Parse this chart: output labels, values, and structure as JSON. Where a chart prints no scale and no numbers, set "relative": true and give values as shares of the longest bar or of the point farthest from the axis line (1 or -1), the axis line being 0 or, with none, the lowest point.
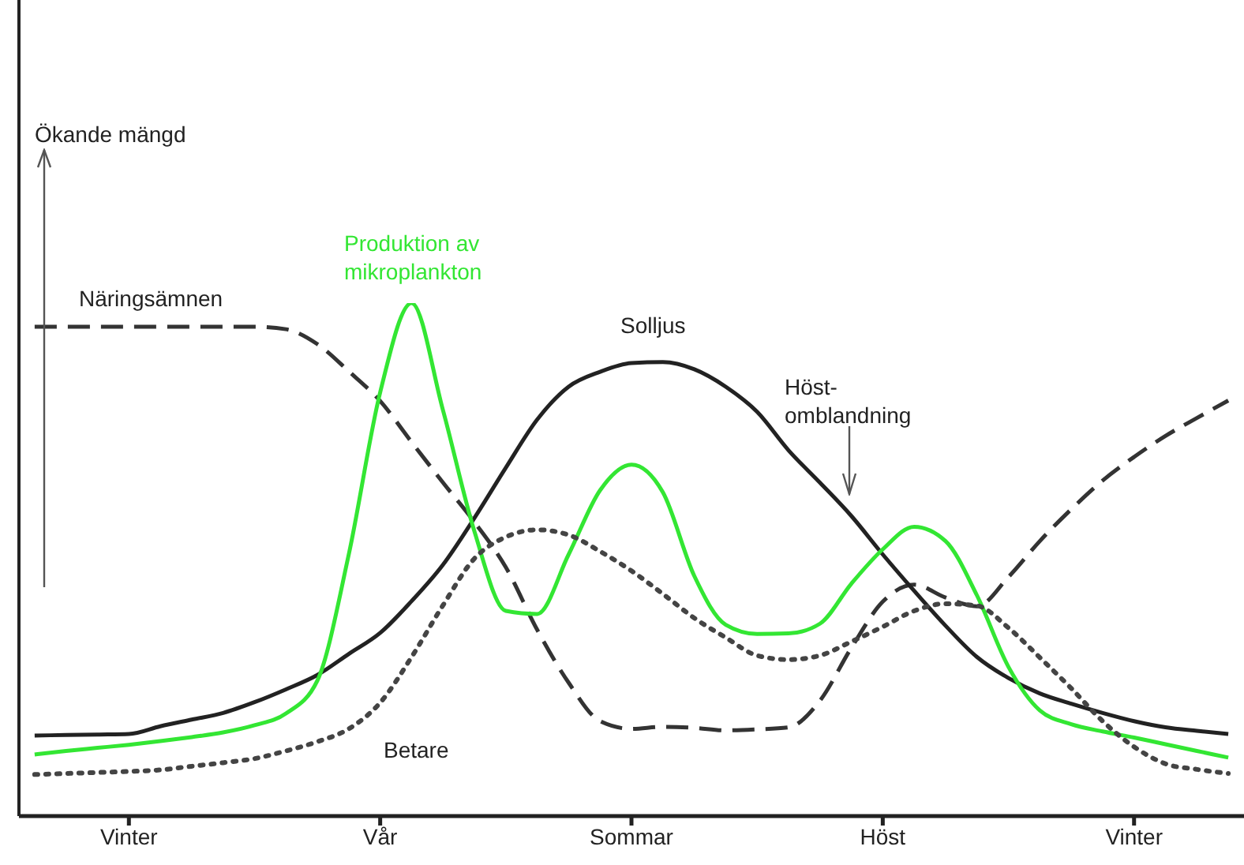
{
  "chart_data": {
    "type": "line",
    "relative": true,
    "categories": [
      null,
      null,
      null,
      "Vinter",
      null,
      null,
      null,
      null,
      null,
      null,
      null,
      "Vår",
      null,
      null,
      null,
      null,
      null,
      null,
      null,
      "Sommar",
      null,
      null,
      null,
      null,
      null,
      null,
      null,
      "Höst",
      null,
      null,
      null,
      null,
      null,
      null,
      null,
      "Vinter",
      null,
      null,
      null
    ],
    "annotations": [
      "Ökande mängd",
      "Höst-\nomblandning"
    ],
    "marker": "none",
    "grid": false,
    "legend": false,
    "series": [
      {
        "name": "Näringsämnen",
        "color": "#333333",
        "line_style": "dashed",
        "values": [
          0.954,
          0.954,
          0.954,
          0.954,
          0.954,
          0.954,
          0.954,
          0.954,
          0.949,
          0.92,
          0.867,
          0.809,
          0.729,
          0.65,
          0.573,
          0.485,
          0.363,
          0.26,
          0.185,
          0.17,
          0.174,
          0.172,
          0.167,
          0.169,
          0.173,
          0.225,
          0.328,
          0.418,
          0.451,
          0.426,
          0.409,
          0.466,
          0.536,
          0.598,
          0.654,
          0.7,
          0.741,
          0.776,
          0.81
        ]
      },
      {
        "name": "Solljus",
        "color": "#222222",
        "line_style": "solid",
        "values": [
          0.157,
          0.158,
          0.159,
          0.16,
          0.175,
          0.188,
          0.201,
          0.222,
          0.247,
          0.275,
          0.316,
          0.357,
          0.419,
          0.49,
          0.581,
          0.679,
          0.773,
          0.837,
          0.866,
          0.883,
          0.885,
          0.871,
          0.837,
          0.788,
          0.713,
          0.65,
          0.585,
          0.51,
          0.439,
          0.371,
          0.31,
          0.269,
          0.239,
          0.219,
          0.201,
          0.185,
          0.173,
          0.166,
          0.16
        ]
      },
      {
        "name": "Produktion av mikroplankton",
        "color": "#33e633",
        "line_style": "solid",
        "values": [
          0.12,
          0.127,
          0.133,
          0.139,
          0.146,
          0.154,
          0.163,
          0.177,
          0.2,
          0.264,
          0.51,
          0.826,
          1,
          0.791,
          0.555,
          0.4,
          0.394,
          0.51,
          0.635,
          0.685,
          0.631,
          0.468,
          0.373,
          0.355,
          0.356,
          0.375,
          0.453,
          0.52,
          0.564,
          0.536,
          0.43,
          0.291,
          0.206,
          0.179,
          0.165,
          0.153,
          0.14,
          0.127,
          0.114
        ]
      },
      {
        "name": "Betare",
        "color": "#444444",
        "line_style": "dotted",
        "values": [
          0.081,
          0.083,
          0.085,
          0.087,
          0.09,
          0.097,
          0.104,
          0.112,
          0.127,
          0.145,
          0.17,
          0.221,
          0.31,
          0.411,
          0.502,
          0.544,
          0.558,
          0.548,
          0.516,
          0.478,
          0.433,
          0.386,
          0.348,
          0.313,
          0.305,
          0.313,
          0.34,
          0.369,
          0.4,
          0.414,
          0.41,
          0.367,
          0.309,
          0.249,
          0.185,
          0.135,
          0.102,
          0.091,
          0.083
        ]
      }
    ]
  }
}
